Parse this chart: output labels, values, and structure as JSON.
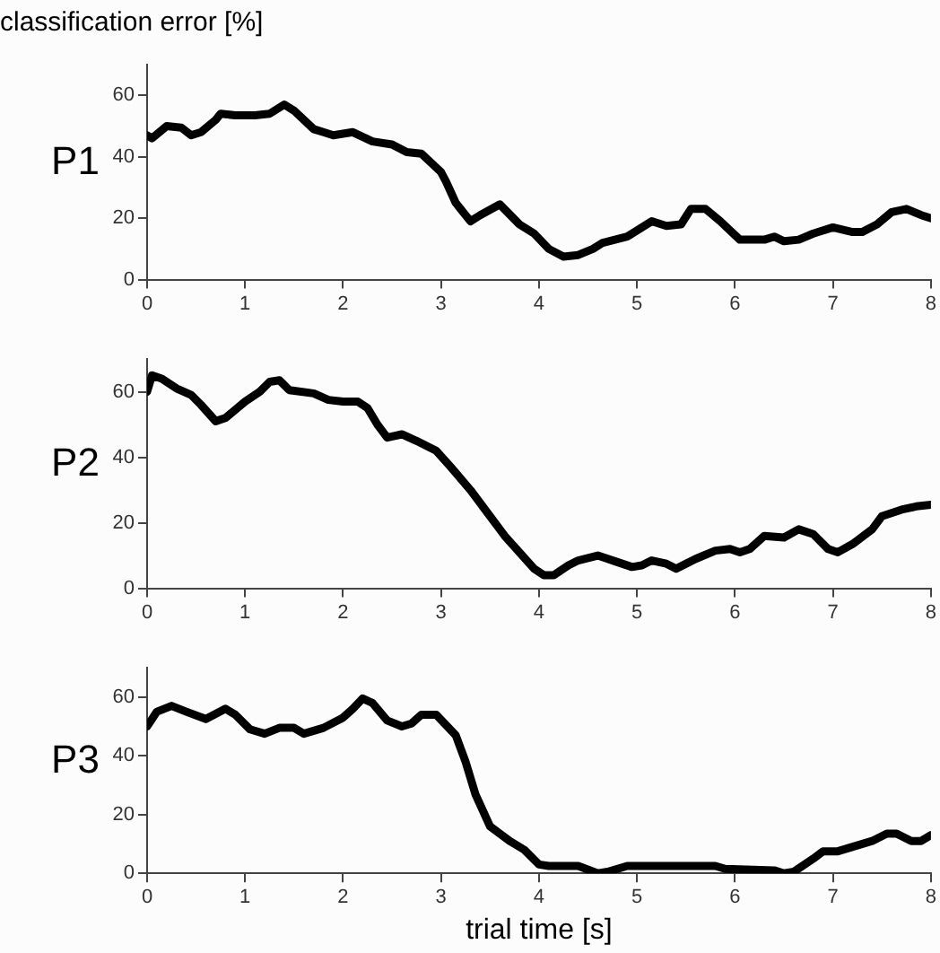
{
  "chart_data": [
    {
      "type": "line",
      "title": "classification error [%]",
      "ylabel": "P1",
      "xlim": [
        0,
        8
      ],
      "xticks": [
        0,
        1,
        2,
        3,
        4,
        5,
        6,
        7,
        8
      ],
      "ylim": [
        0,
        70
      ],
      "yticks": [
        0,
        20,
        40,
        60
      ],
      "grid": false,
      "legend": false,
      "marker": "none",
      "line_style": "solid",
      "series": [
        {
          "color": "#000000",
          "x": [
            0,
            0.05,
            0.2,
            0.35,
            0.45,
            0.55,
            0.7,
            0.75,
            0.9,
            1.1,
            1.25,
            1.4,
            1.5,
            1.7,
            1.8,
            1.9,
            2.1,
            2.3,
            2.5,
            2.65,
            2.8,
            2.9,
            3.0,
            3.05,
            3.15,
            3.3,
            3.4,
            3.6,
            3.8,
            3.95,
            4.1,
            4.25,
            4.4,
            4.55,
            4.65,
            4.9,
            5.0,
            5.15,
            5.3,
            5.45,
            5.55,
            5.7,
            5.85,
            6.05,
            6.3,
            6.4,
            6.5,
            6.65,
            6.8,
            7.0,
            7.2,
            7.3,
            7.45,
            7.6,
            7.75,
            7.9,
            8
          ],
          "values": [
            47,
            46,
            50,
            49.5,
            47,
            48,
            52,
            54,
            53.5,
            53.5,
            54,
            57,
            55,
            49,
            48,
            47,
            48,
            45,
            44,
            41.5,
            41,
            38,
            35,
            32,
            25,
            19,
            21,
            24.5,
            18,
            15,
            10,
            7.5,
            8,
            10,
            12,
            14,
            16,
            19,
            17.5,
            18,
            23,
            23,
            19,
            13,
            13,
            14,
            12.5,
            13,
            15,
            17,
            15.5,
            15.5,
            18,
            22,
            23,
            21,
            20
          ]
        }
      ]
    },
    {
      "type": "line",
      "ylabel": "P2",
      "xlim": [
        0,
        8
      ],
      "xticks": [
        0,
        1,
        2,
        3,
        4,
        5,
        6,
        7,
        8
      ],
      "ylim": [
        0,
        70
      ],
      "yticks": [
        0,
        20,
        40,
        60
      ],
      "grid": false,
      "legend": false,
      "marker": "none",
      "line_style": "solid",
      "series": [
        {
          "color": "#000000",
          "x": [
            0,
            0.05,
            0.15,
            0.3,
            0.45,
            0.55,
            0.7,
            0.8,
            1.0,
            1.15,
            1.25,
            1.35,
            1.45,
            1.7,
            1.85,
            2.0,
            2.15,
            2.25,
            2.35,
            2.45,
            2.6,
            2.75,
            2.95,
            3.1,
            3.3,
            3.5,
            3.65,
            3.8,
            3.95,
            4.05,
            4.15,
            4.3,
            4.4,
            4.6,
            4.8,
            4.95,
            5.05,
            5.15,
            5.3,
            5.4,
            5.6,
            5.8,
            5.95,
            6.05,
            6.15,
            6.3,
            6.5,
            6.65,
            6.8,
            6.95,
            7.05,
            7.2,
            7.4,
            7.5,
            7.7,
            7.85,
            8
          ],
          "values": [
            60,
            65,
            64,
            61,
            59,
            56,
            51,
            52,
            57,
            60,
            63,
            63.5,
            60.5,
            59.5,
            57.5,
            57,
            57,
            55,
            50,
            46,
            47,
            45,
            42,
            37,
            30,
            22,
            16,
            11,
            6,
            4,
            4,
            7,
            8.5,
            10,
            8,
            6.5,
            7,
            8.5,
            7.5,
            6,
            9,
            11.5,
            12,
            11,
            12,
            16,
            15.5,
            18,
            16.5,
            12,
            11,
            13.5,
            18,
            22,
            24,
            25,
            25.5
          ]
        }
      ]
    },
    {
      "type": "line",
      "ylabel": "P3",
      "xlabel": "trial time [s]",
      "xlim": [
        0,
        8
      ],
      "xticks": [
        0,
        1,
        2,
        3,
        4,
        5,
        6,
        7,
        8
      ],
      "ylim": [
        0,
        70
      ],
      "yticks": [
        0,
        20,
        40,
        60
      ],
      "grid": false,
      "legend": false,
      "marker": "none",
      "line_style": "solid",
      "series": [
        {
          "color": "#000000",
          "x": [
            0,
            0.1,
            0.25,
            0.4,
            0.6,
            0.8,
            0.9,
            1.05,
            1.2,
            1.35,
            1.5,
            1.6,
            1.8,
            2.0,
            2.1,
            2.2,
            2.3,
            2.45,
            2.6,
            2.7,
            2.8,
            2.95,
            3.05,
            3.15,
            3.25,
            3.35,
            3.5,
            3.7,
            3.85,
            4.0,
            4.1,
            4.4,
            4.6,
            4.7,
            4.9,
            5.8,
            5.9,
            6.4,
            6.5,
            6.6,
            6.8,
            6.9,
            7.05,
            7.4,
            7.55,
            7.65,
            7.8,
            7.9,
            8
          ],
          "values": [
            50,
            55,
            57,
            55,
            52.5,
            56,
            54,
            49,
            47.5,
            49.5,
            49.5,
            47.5,
            49.5,
            53,
            56,
            59.5,
            58,
            52,
            50,
            51,
            54,
            54,
            50.5,
            47,
            38,
            27,
            16,
            11,
            8,
            3,
            2.5,
            2.5,
            0,
            0.5,
            2.5,
            2.5,
            1.5,
            1,
            0,
            0.5,
            5,
            7.5,
            7.5,
            11,
            13.5,
            13.5,
            11,
            11,
            13
          ]
        }
      ]
    }
  ]
}
